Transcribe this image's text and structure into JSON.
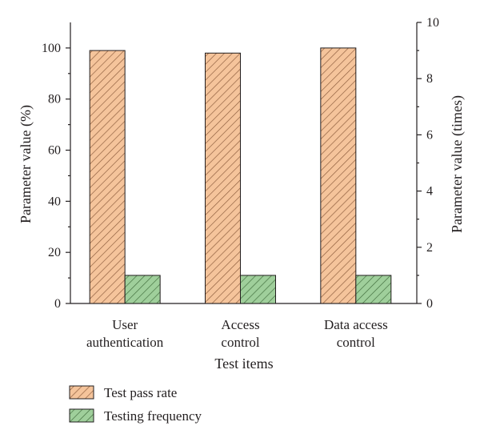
{
  "chart_data": {
    "type": "bar",
    "categories": [
      [
        "User",
        "authentication"
      ],
      [
        "Access",
        "control"
      ],
      [
        "Data access",
        "control"
      ]
    ],
    "series": [
      {
        "name": "Test pass rate",
        "axis": "left",
        "values": [
          99,
          98,
          100
        ],
        "color": "#f5c49b",
        "hatch": "#8a5a3a"
      },
      {
        "name": "Testing frequency",
        "axis": "right",
        "values": [
          1,
          1,
          1
        ],
        "color": "#9fcf9b",
        "hatch": "#3f6b3b"
      }
    ],
    "xlabel": "Test items",
    "ylabel_left": "Parameter value (%)",
    "ylabel_right": "Parameter value (times)",
    "ylim_left": [
      0,
      110
    ],
    "yticks_left": [
      0,
      20,
      40,
      60,
      80,
      100
    ],
    "ylim_right": [
      0,
      10
    ],
    "yticks_right": [
      0,
      2,
      4,
      6,
      8,
      10
    ],
    "grid": false,
    "legend_position": "bottom-left"
  }
}
